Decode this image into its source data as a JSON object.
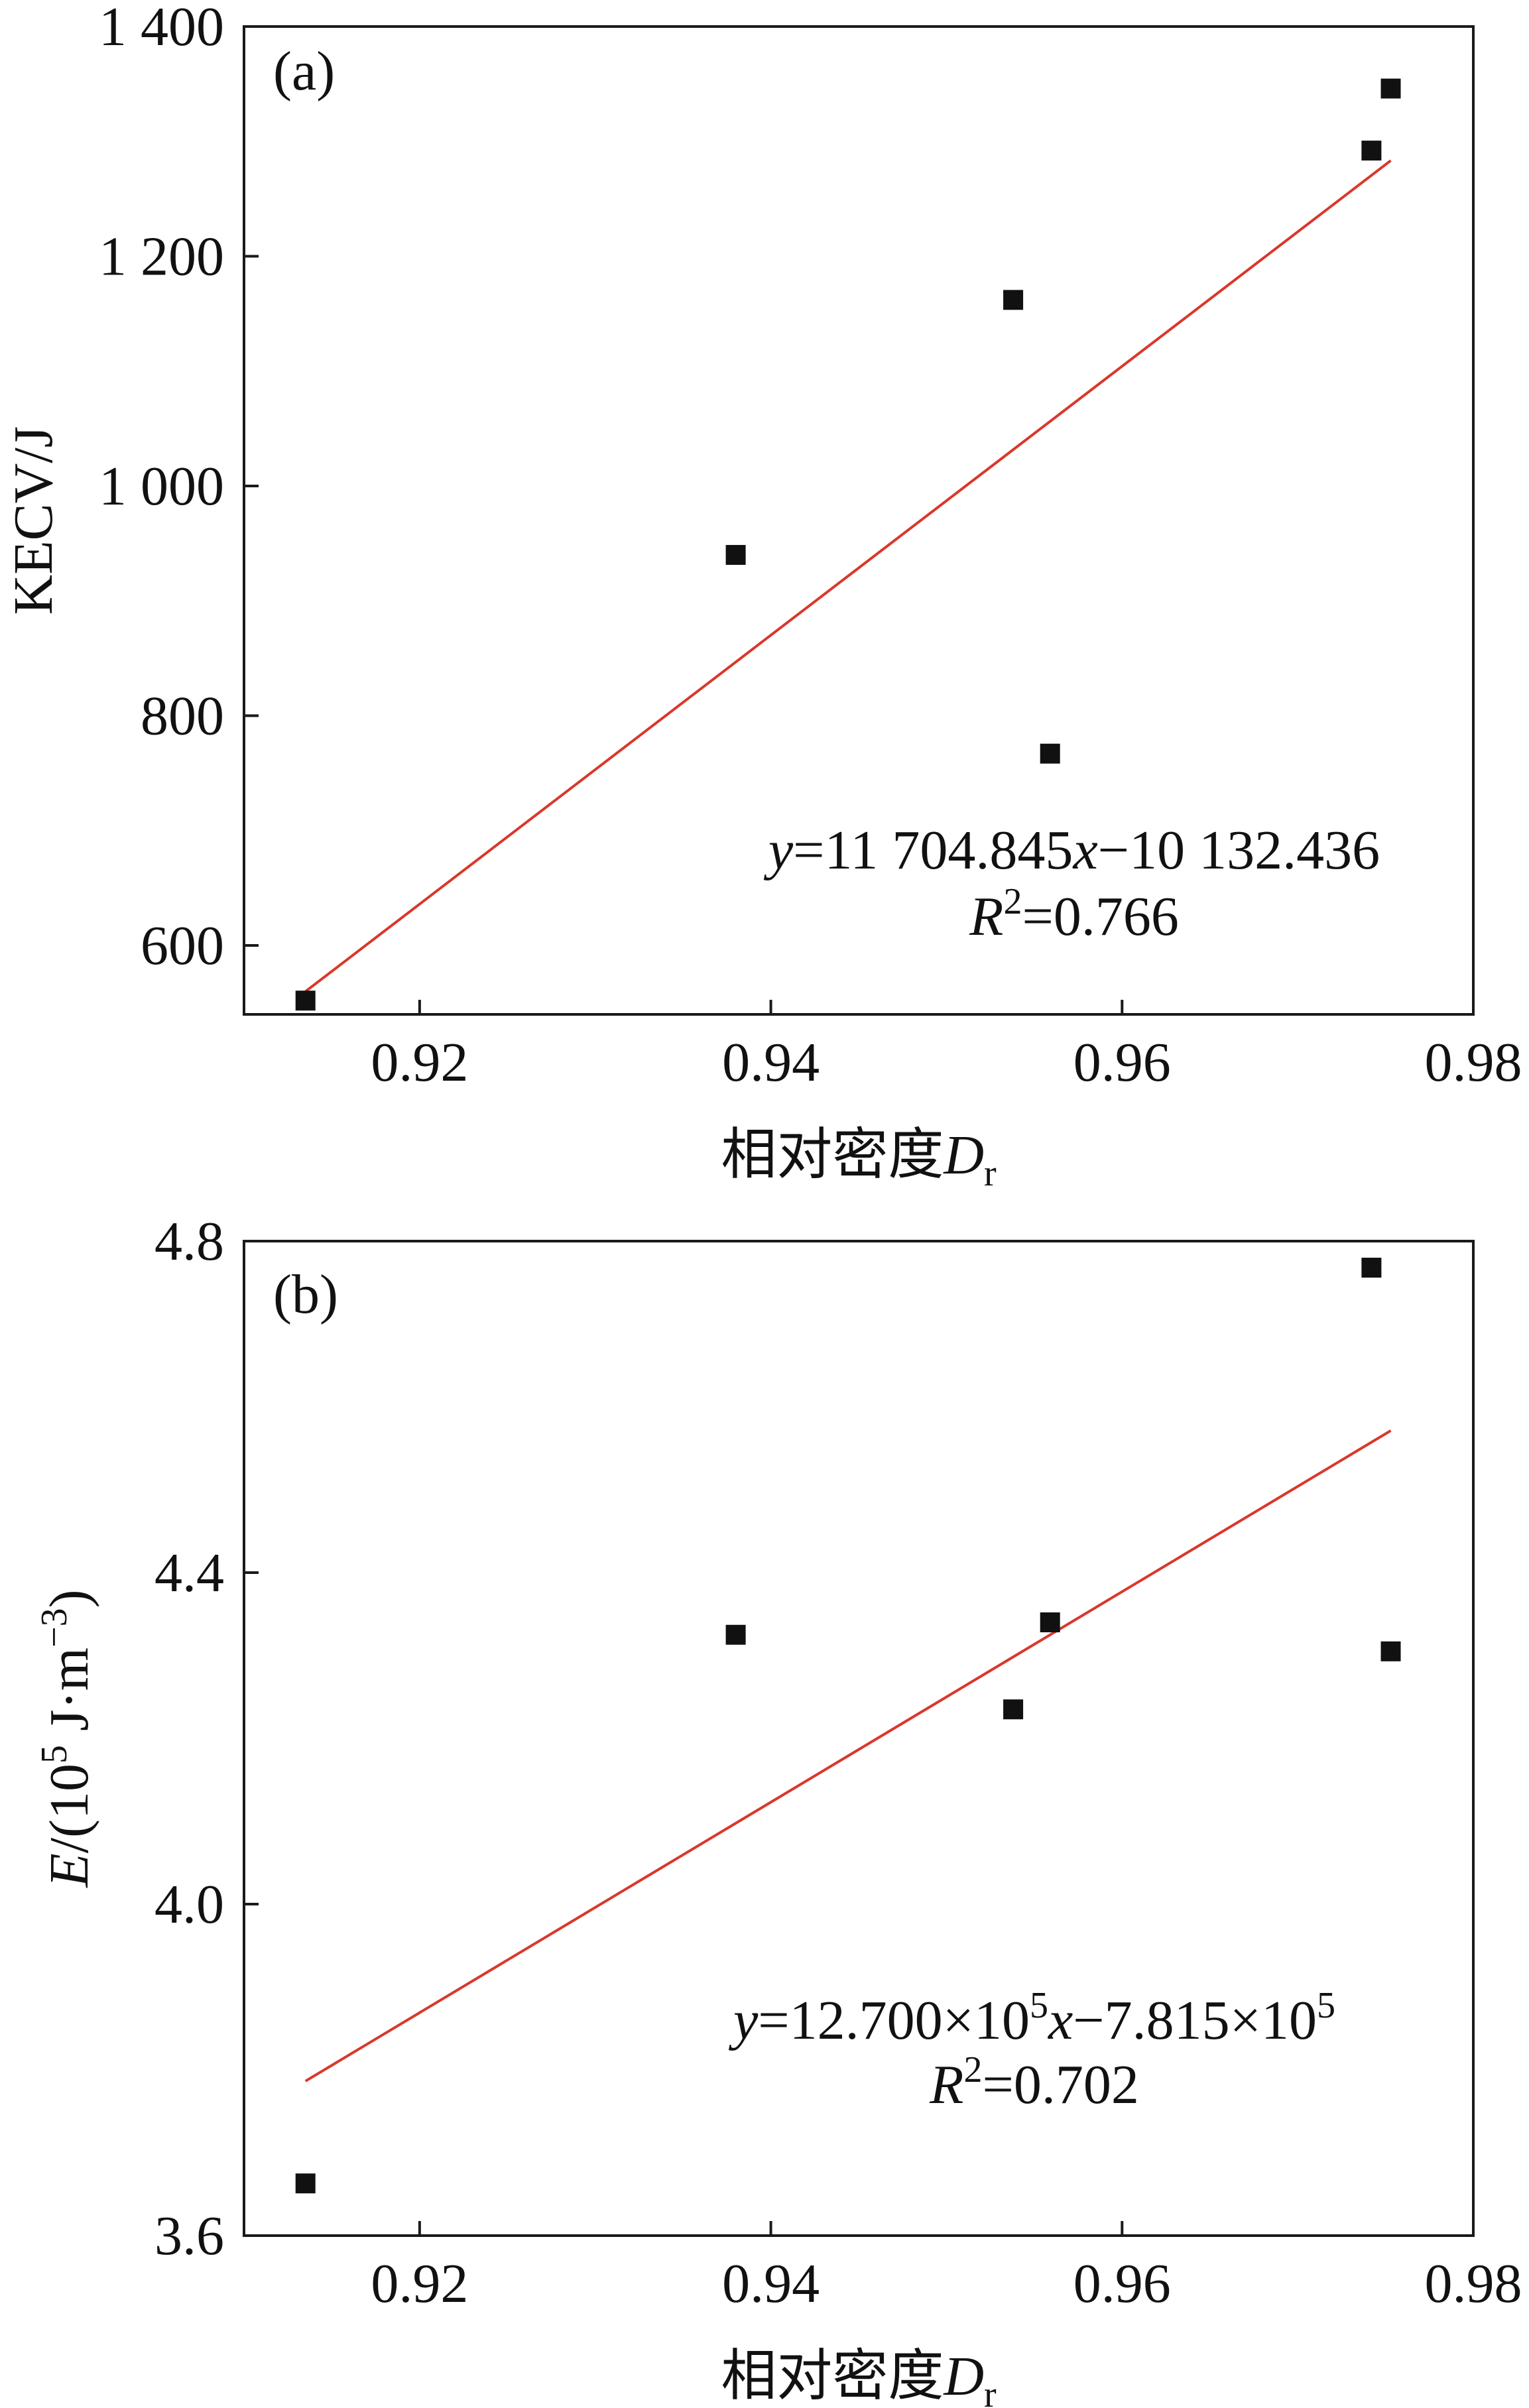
{
  "colors": {
    "axis": "#1a1a1a",
    "marker": "#111111",
    "fit_line": "#d9382b",
    "background": "#ffffff"
  },
  "chart_data": [
    {
      "panel": "(a)",
      "type": "scatter",
      "xlabel": "相对密度",
      "xlabel_var": "D",
      "xlabel_sub": "r",
      "ylabel": "KECV/J",
      "xlim": [
        0.91,
        0.98
      ],
      "ylim": [
        540,
        1400
      ],
      "xticks": [
        0.92,
        0.94,
        0.96,
        0.98
      ],
      "xtick_labels": [
        "0.92",
        "0.94",
        "0.96",
        "0.98"
      ],
      "yticks": [
        600,
        800,
        1000,
        1200,
        1400
      ],
      "ytick_labels": [
        "600",
        "800",
        "1 000",
        "1 200",
        "1 400"
      ],
      "points": [
        {
          "x": 0.9135,
          "y": 552
        },
        {
          "x": 0.938,
          "y": 940
        },
        {
          "x": 0.9538,
          "y": 1162
        },
        {
          "x": 0.9559,
          "y": 767
        },
        {
          "x": 0.9742,
          "y": 1292
        },
        {
          "x": 0.9753,
          "y": 1346
        }
      ],
      "fit": {
        "slope": 11704.845,
        "intercept": -10132.436,
        "x_range": [
          0.9135,
          0.9753
        ]
      },
      "equation": {
        "lhs": "y",
        "mid": "=11 704.845",
        "var": "x",
        "rhs": "−10 132.436"
      },
      "r2": {
        "R": "R",
        "sup": "2",
        "value": "=0.766"
      }
    },
    {
      "panel": "(b)",
      "type": "scatter",
      "xlabel": "相对密度",
      "xlabel_var": "D",
      "xlabel_sub": "r",
      "ylabel": {
        "var": "E",
        "part1": "/(10",
        "sup1": "5",
        "part2": " J·m",
        "sup2": "−3",
        "part3": ")"
      },
      "xlim": [
        0.91,
        0.98
      ],
      "ylim": [
        3.6,
        4.8
      ],
      "xticks": [
        0.92,
        0.94,
        0.96,
        0.98
      ],
      "xtick_labels": [
        "0.92",
        "0.94",
        "0.96",
        "0.98"
      ],
      "yticks": [
        3.6,
        4.0,
        4.4,
        4.8
      ],
      "ytick_labels": [
        "3.6",
        "4.0",
        "4.4",
        "4.8"
      ],
      "points": [
        {
          "x": 0.9135,
          "y": 3.663
        },
        {
          "x": 0.938,
          "y": 4.325
        },
        {
          "x": 0.9538,
          "y": 4.235
        },
        {
          "x": 0.9559,
          "y": 4.34
        },
        {
          "x": 0.9742,
          "y": 4.768
        },
        {
          "x": 0.9753,
          "y": 4.305
        }
      ],
      "fit": {
        "slope": 12.7,
        "intercept": -7.815,
        "x_range": [
          0.9135,
          0.9753
        ]
      },
      "equation": {
        "lhs": "y",
        "p1": "=12.700×10",
        "s1": "5",
        "var": "x",
        "p2": "−7.815×10",
        "s2": "5"
      },
      "r2": {
        "R": "R",
        "sup": "2",
        "value": "=0.702"
      }
    }
  ]
}
